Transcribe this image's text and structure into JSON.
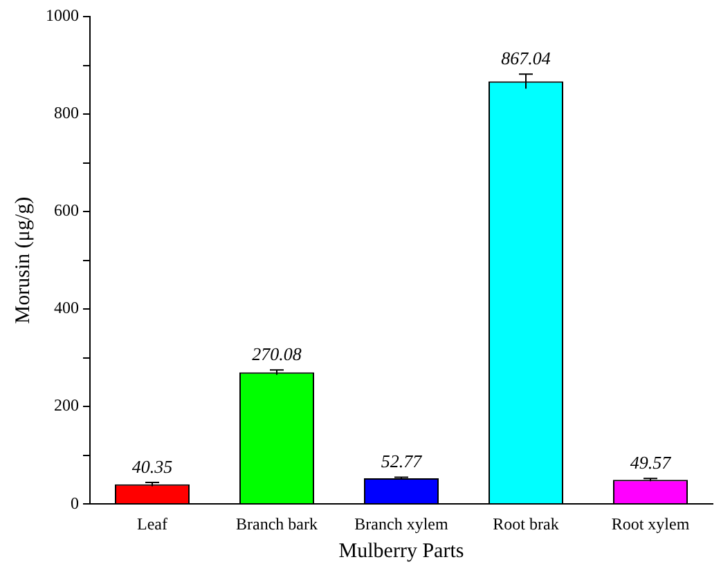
{
  "chart_data": {
    "type": "bar",
    "xlabel": "Mulberry Parts",
    "ylabel": "Morusin (μg/g)",
    "categories": [
      "Leaf",
      "Branch bark",
      "Branch xylem",
      "Root brak",
      "Root xylem"
    ],
    "values": [
      40.35,
      270.08,
      52.77,
      867.04,
      49.57
    ],
    "colors": [
      "#ff0000",
      "#00ff00",
      "#0000ff",
      "#00ffff",
      "#ff00ff"
    ],
    "errors": [
      4,
      5,
      2,
      15,
      3
    ],
    "ylim": [
      0,
      1000
    ],
    "yticks": [
      0,
      {
        "value": 100,
        "label": null
      },
      200,
      {
        "value": 300,
        "label": null
      },
      400,
      {
        "value": 500,
        "label": null
      },
      600,
      {
        "value": 700,
        "label": null
      },
      800,
      {
        "value": 900,
        "label": null
      },
      1000
    ],
    "data_labels": true,
    "grid": false,
    "legend": false
  }
}
